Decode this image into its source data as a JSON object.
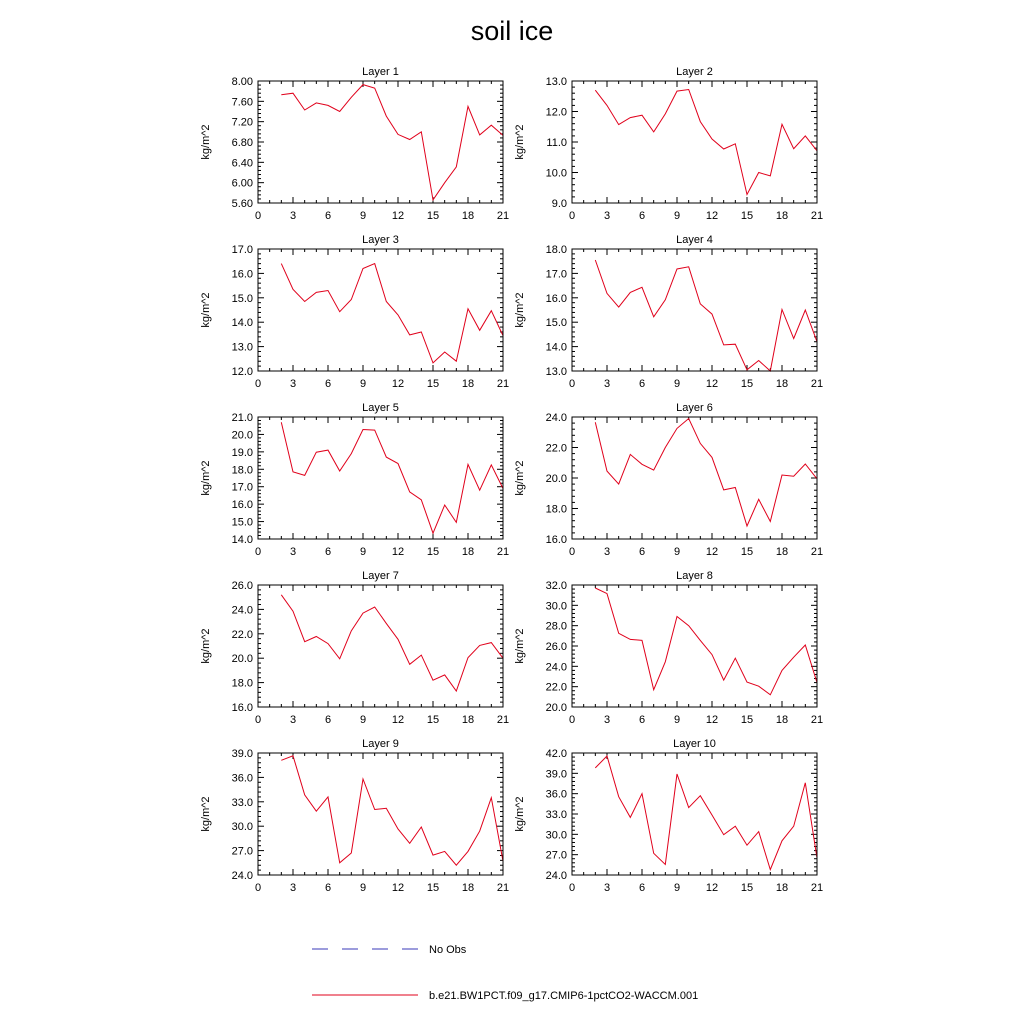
{
  "title": "soil ice",
  "legend": {
    "no_obs_label": "No Obs",
    "no_obs_color": "#3a3ab8",
    "model_label": "b.e21.BW1PCT.f09_g17.CMIP6-1pctCO2-WACCM.001",
    "model_color": "#e0001b"
  },
  "chart_data": [
    {
      "type": "line",
      "title": "Layer 1",
      "ylabel": "kg/m^2",
      "xlim": [
        0,
        21
      ],
      "ylim": [
        5.6,
        8.0
      ],
      "xticks": [
        "0",
        "3",
        "6",
        "9",
        "12",
        "15",
        "18",
        "21"
      ],
      "yticks": [
        "5.60",
        "6.00",
        "6.40",
        "6.80",
        "7.20",
        "7.60",
        "8.00"
      ],
      "x": [
        2,
        3,
        4,
        5,
        6,
        7,
        8,
        9,
        10,
        11,
        12,
        13,
        14,
        15,
        16,
        17,
        18,
        19,
        20,
        21
      ],
      "series": [
        {
          "name": "b.e21.BW1PCT.f09_g17.CMIP6-1pctCO2-WACCM.001",
          "values": [
            7.73,
            7.76,
            7.43,
            7.57,
            7.52,
            7.4,
            7.68,
            7.93,
            7.86,
            7.31,
            6.95,
            6.85,
            7.0,
            5.66,
            6.0,
            6.31,
            7.5,
            6.94,
            7.13,
            6.93
          ]
        }
      ]
    },
    {
      "type": "line",
      "title": "Layer 2",
      "ylabel": "kg/m^2",
      "xlim": [
        0,
        21
      ],
      "ylim": [
        9.0,
        13.0
      ],
      "xticks": [
        "0",
        "3",
        "6",
        "9",
        "12",
        "15",
        "18",
        "21"
      ],
      "yticks": [
        "9.0",
        "10.0",
        "11.0",
        "12.0",
        "13.0"
      ],
      "x": [
        2,
        3,
        4,
        5,
        6,
        7,
        8,
        9,
        10,
        11,
        12,
        13,
        14,
        15,
        16,
        17,
        18,
        19,
        20,
        21
      ],
      "series": [
        {
          "name": "b.e21.BW1PCT.f09_g17.CMIP6-1pctCO2-WACCM.001",
          "values": [
            12.7,
            12.2,
            11.57,
            11.8,
            11.88,
            11.33,
            11.92,
            12.67,
            12.72,
            11.67,
            11.1,
            10.77,
            10.94,
            9.28,
            10.0,
            9.89,
            11.58,
            10.78,
            11.2,
            10.71
          ]
        }
      ]
    },
    {
      "type": "line",
      "title": "Layer 3",
      "ylabel": "kg/m^2",
      "xlim": [
        0,
        21
      ],
      "ylim": [
        12.0,
        17.0
      ],
      "xticks": [
        "0",
        "3",
        "6",
        "9",
        "12",
        "15",
        "18",
        "21"
      ],
      "yticks": [
        "12.0",
        "13.0",
        "14.0",
        "15.0",
        "16.0",
        "17.0"
      ],
      "x": [
        2,
        3,
        4,
        5,
        6,
        7,
        8,
        9,
        10,
        11,
        12,
        13,
        14,
        15,
        16,
        17,
        18,
        19,
        20,
        21
      ],
      "series": [
        {
          "name": "b.e21.BW1PCT.f09_g17.CMIP6-1pctCO2-WACCM.001",
          "values": [
            16.4,
            15.35,
            14.85,
            15.22,
            15.3,
            14.43,
            14.93,
            16.2,
            16.4,
            14.85,
            14.3,
            13.48,
            13.6,
            12.33,
            12.78,
            12.4,
            14.55,
            13.67,
            14.47,
            13.45
          ]
        }
      ]
    },
    {
      "type": "line",
      "title": "Layer 4",
      "ylabel": "kg/m^2",
      "xlim": [
        0,
        21
      ],
      "ylim": [
        13.0,
        18.0
      ],
      "xticks": [
        "0",
        "3",
        "6",
        "9",
        "12",
        "15",
        "18",
        "21"
      ],
      "yticks": [
        "13.0",
        "14.0",
        "15.0",
        "16.0",
        "17.0",
        "18.0"
      ],
      "x": [
        2,
        3,
        4,
        5,
        6,
        7,
        8,
        9,
        10,
        11,
        12,
        13,
        14,
        15,
        16,
        17,
        18,
        19,
        20,
        21
      ],
      "series": [
        {
          "name": "b.e21.BW1PCT.f09_g17.CMIP6-1pctCO2-WACCM.001",
          "values": [
            17.55,
            16.18,
            15.62,
            16.22,
            16.43,
            15.22,
            15.92,
            17.18,
            17.27,
            15.75,
            15.33,
            14.07,
            14.1,
            13.05,
            13.43,
            13.0,
            15.52,
            14.33,
            15.5,
            14.2
          ]
        }
      ]
    },
    {
      "type": "line",
      "title": "Layer 5",
      "ylabel": "kg/m^2",
      "xlim": [
        0,
        21
      ],
      "ylim": [
        14.0,
        21.0
      ],
      "xticks": [
        "0",
        "3",
        "6",
        "9",
        "12",
        "15",
        "18",
        "21"
      ],
      "yticks": [
        "14.0",
        "15.0",
        "16.0",
        "17.0",
        "18.0",
        "19.0",
        "20.0",
        "21.0"
      ],
      "x": [
        2,
        3,
        4,
        5,
        6,
        7,
        8,
        9,
        10,
        11,
        12,
        13,
        14,
        15,
        16,
        17,
        18,
        19,
        20,
        21
      ],
      "series": [
        {
          "name": "b.e21.BW1PCT.f09_g17.CMIP6-1pctCO2-WACCM.001",
          "values": [
            20.7,
            17.85,
            17.65,
            18.98,
            19.1,
            17.9,
            18.9,
            20.28,
            20.25,
            18.7,
            18.33,
            16.7,
            16.25,
            14.33,
            15.95,
            14.95,
            18.28,
            16.8,
            18.25,
            16.9
          ]
        }
      ]
    },
    {
      "type": "line",
      "title": "Layer 6",
      "ylabel": "kg/m^2",
      "xlim": [
        0,
        21
      ],
      "ylim": [
        16.0,
        24.0
      ],
      "xticks": [
        "0",
        "3",
        "6",
        "9",
        "12",
        "15",
        "18",
        "21"
      ],
      "yticks": [
        "16.0",
        "18.0",
        "20.0",
        "22.0",
        "24.0"
      ],
      "x": [
        2,
        3,
        4,
        5,
        6,
        7,
        8,
        9,
        10,
        11,
        12,
        13,
        14,
        15,
        16,
        17,
        18,
        19,
        20,
        21
      ],
      "series": [
        {
          "name": "b.e21.BW1PCT.f09_g17.CMIP6-1pctCO2-WACCM.001",
          "values": [
            23.65,
            20.45,
            19.6,
            21.55,
            20.9,
            20.52,
            22.0,
            23.25,
            23.9,
            22.27,
            21.35,
            19.22,
            19.38,
            16.85,
            18.6,
            17.15,
            20.2,
            20.12,
            20.92,
            19.95
          ]
        }
      ]
    },
    {
      "type": "line",
      "title": "Layer 7",
      "ylabel": "kg/m^2",
      "xlim": [
        0,
        21
      ],
      "ylim": [
        16.0,
        26.0
      ],
      "xticks": [
        "0",
        "3",
        "6",
        "9",
        "12",
        "15",
        "18",
        "21"
      ],
      "yticks": [
        "16.0",
        "18.0",
        "20.0",
        "22.0",
        "24.0",
        "26.0"
      ],
      "x": [
        2,
        3,
        4,
        5,
        6,
        7,
        8,
        9,
        10,
        11,
        12,
        13,
        14,
        15,
        16,
        17,
        18,
        19,
        20,
        21
      ],
      "series": [
        {
          "name": "b.e21.BW1PCT.f09_g17.CMIP6-1pctCO2-WACCM.001",
          "values": [
            25.2,
            23.85,
            21.35,
            21.78,
            21.2,
            19.95,
            22.25,
            23.7,
            24.2,
            22.85,
            21.55,
            19.5,
            20.25,
            18.2,
            18.63,
            17.3,
            20.05,
            21.05,
            21.28,
            20.0
          ]
        }
      ]
    },
    {
      "type": "line",
      "title": "Layer 8",
      "ylabel": "kg/m^2",
      "xlim": [
        0,
        21
      ],
      "ylim": [
        20.0,
        32.0
      ],
      "xticks": [
        "0",
        "3",
        "6",
        "9",
        "12",
        "15",
        "18",
        "21"
      ],
      "yticks": [
        "20.0",
        "22.0",
        "24.0",
        "26.0",
        "28.0",
        "30.0",
        "32.0"
      ],
      "x": [
        2,
        3,
        4,
        5,
        6,
        7,
        8,
        9,
        10,
        11,
        12,
        13,
        14,
        15,
        16,
        17,
        18,
        19,
        20,
        21
      ],
      "series": [
        {
          "name": "b.e21.BW1PCT.f09_g17.CMIP6-1pctCO2-WACCM.001",
          "values": [
            31.7,
            31.15,
            27.25,
            26.65,
            26.55,
            21.7,
            24.45,
            28.9,
            28.0,
            26.55,
            25.15,
            22.65,
            24.8,
            22.45,
            22.05,
            21.2,
            23.6,
            24.9,
            26.1,
            22.4
          ]
        }
      ]
    },
    {
      "type": "line",
      "title": "Layer 9",
      "ylabel": "kg/m^2",
      "xlim": [
        0,
        21
      ],
      "ylim": [
        24.0,
        39.0
      ],
      "xticks": [
        "0",
        "3",
        "6",
        "9",
        "12",
        "15",
        "18",
        "21"
      ],
      "yticks": [
        "24.0",
        "27.0",
        "30.0",
        "33.0",
        "36.0",
        "39.0"
      ],
      "x": [
        2,
        3,
        4,
        5,
        6,
        7,
        8,
        9,
        10,
        11,
        12,
        13,
        14,
        15,
        16,
        17,
        18,
        19,
        20,
        21
      ],
      "series": [
        {
          "name": "b.e21.BW1PCT.f09_g17.CMIP6-1pctCO2-WACCM.001",
          "values": [
            38.1,
            38.65,
            33.85,
            31.85,
            33.6,
            25.5,
            26.7,
            35.8,
            32.05,
            32.2,
            29.65,
            27.9,
            29.9,
            26.45,
            26.9,
            25.2,
            26.9,
            29.4,
            33.5,
            25.7
          ]
        }
      ]
    },
    {
      "type": "line",
      "title": "Layer 10",
      "ylabel": "kg/m^2",
      "xlim": [
        0,
        21
      ],
      "ylim": [
        24.0,
        42.0
      ],
      "xticks": [
        "0",
        "3",
        "6",
        "9",
        "12",
        "15",
        "18",
        "21"
      ],
      "yticks": [
        "24.0",
        "27.0",
        "30.0",
        "33.0",
        "36.0",
        "39.0",
        "42.0"
      ],
      "x": [
        2,
        3,
        4,
        5,
        6,
        7,
        8,
        9,
        10,
        11,
        12,
        13,
        14,
        15,
        16,
        17,
        18,
        19,
        20,
        21
      ],
      "series": [
        {
          "name": "b.e21.BW1PCT.f09_g17.CMIP6-1pctCO2-WACCM.001",
          "values": [
            39.8,
            41.55,
            35.55,
            32.5,
            36.0,
            27.2,
            25.55,
            38.9,
            33.95,
            35.7,
            32.85,
            29.95,
            31.2,
            28.4,
            30.4,
            24.8,
            29.05,
            31.2,
            37.6,
            26.5
          ]
        }
      ]
    }
  ]
}
